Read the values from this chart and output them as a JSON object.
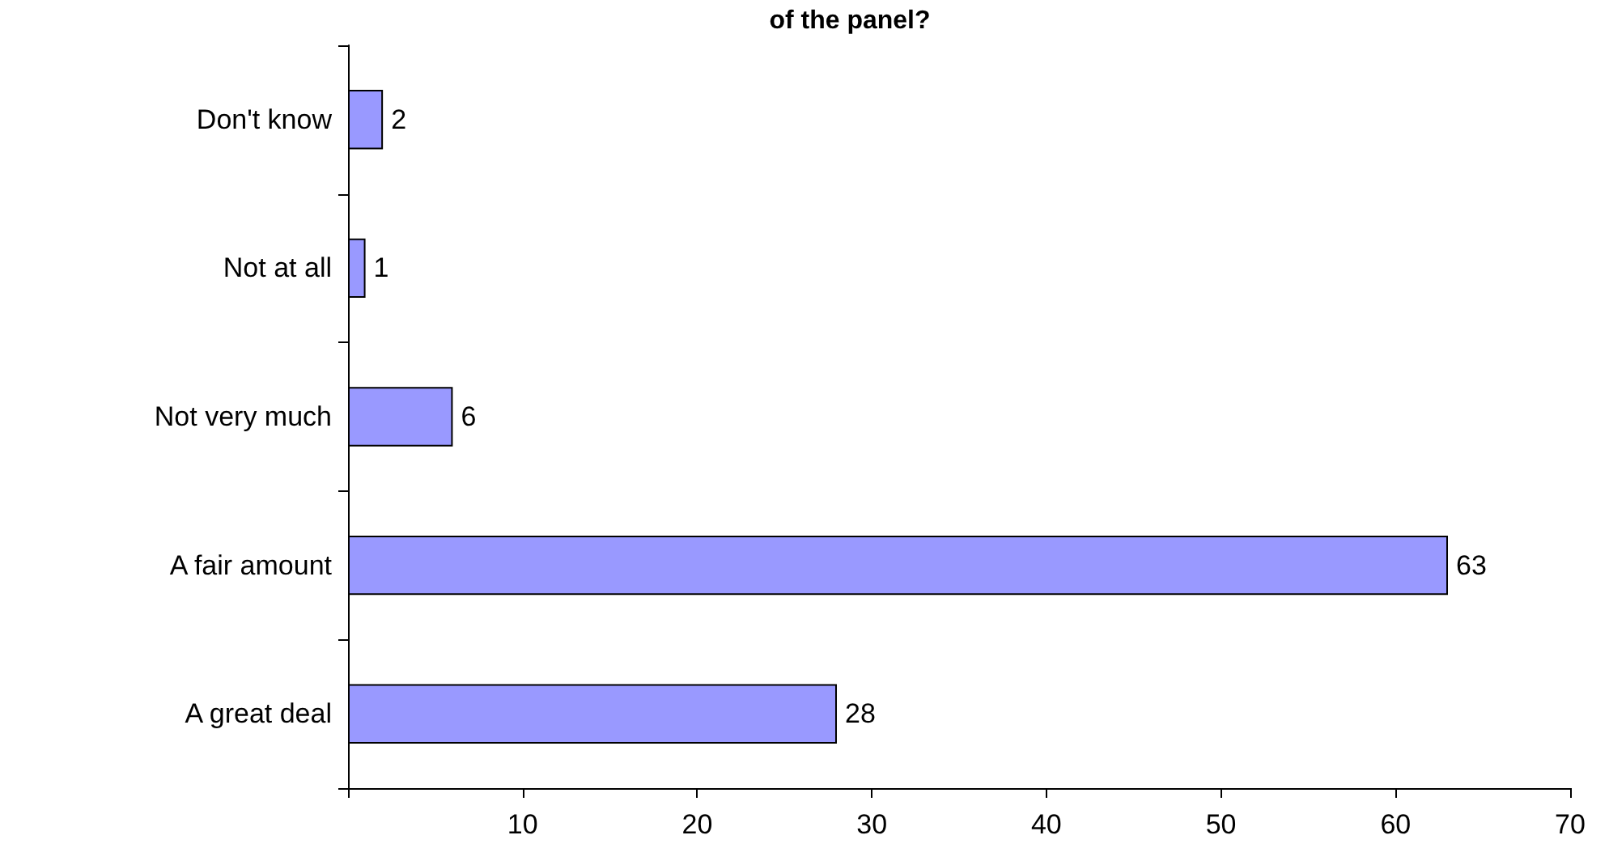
{
  "chart_data": {
    "type": "bar",
    "orientation": "horizontal",
    "title": "of the panel?",
    "categories": [
      "Don't know",
      "Not at all",
      "Not very much",
      "A fair amount",
      "A great deal"
    ],
    "values": [
      2,
      1,
      6,
      63,
      28
    ],
    "color": "#9999ff",
    "data_labels": true,
    "grid": false,
    "xlim": [
      0,
      70
    ],
    "xticks": [
      {
        "value": 0,
        "label": null
      },
      10,
      20,
      30,
      40,
      50,
      60,
      70
    ]
  }
}
